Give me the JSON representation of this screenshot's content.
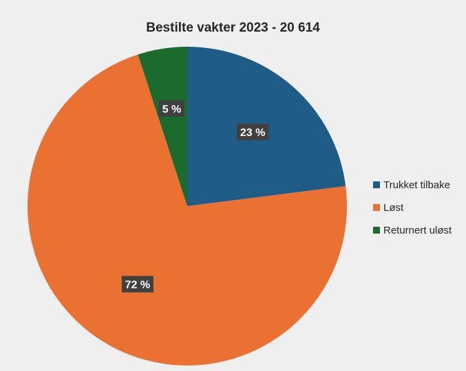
{
  "chart_data": {
    "type": "pie",
    "title": "Bestilte vakter 2023 - 20 614",
    "categories": [
      "Trukket tilbake",
      "Løst",
      "Returnert uløst"
    ],
    "values": [
      23,
      72,
      5
    ],
    "labels": [
      "23 %",
      "72 %",
      "5 %"
    ],
    "colors": [
      "#1f5c85",
      "#ea7132",
      "#1a6b2d"
    ],
    "legend_position": "right"
  },
  "colors": {
    "background": "#efefef",
    "label_box": "#404040"
  }
}
